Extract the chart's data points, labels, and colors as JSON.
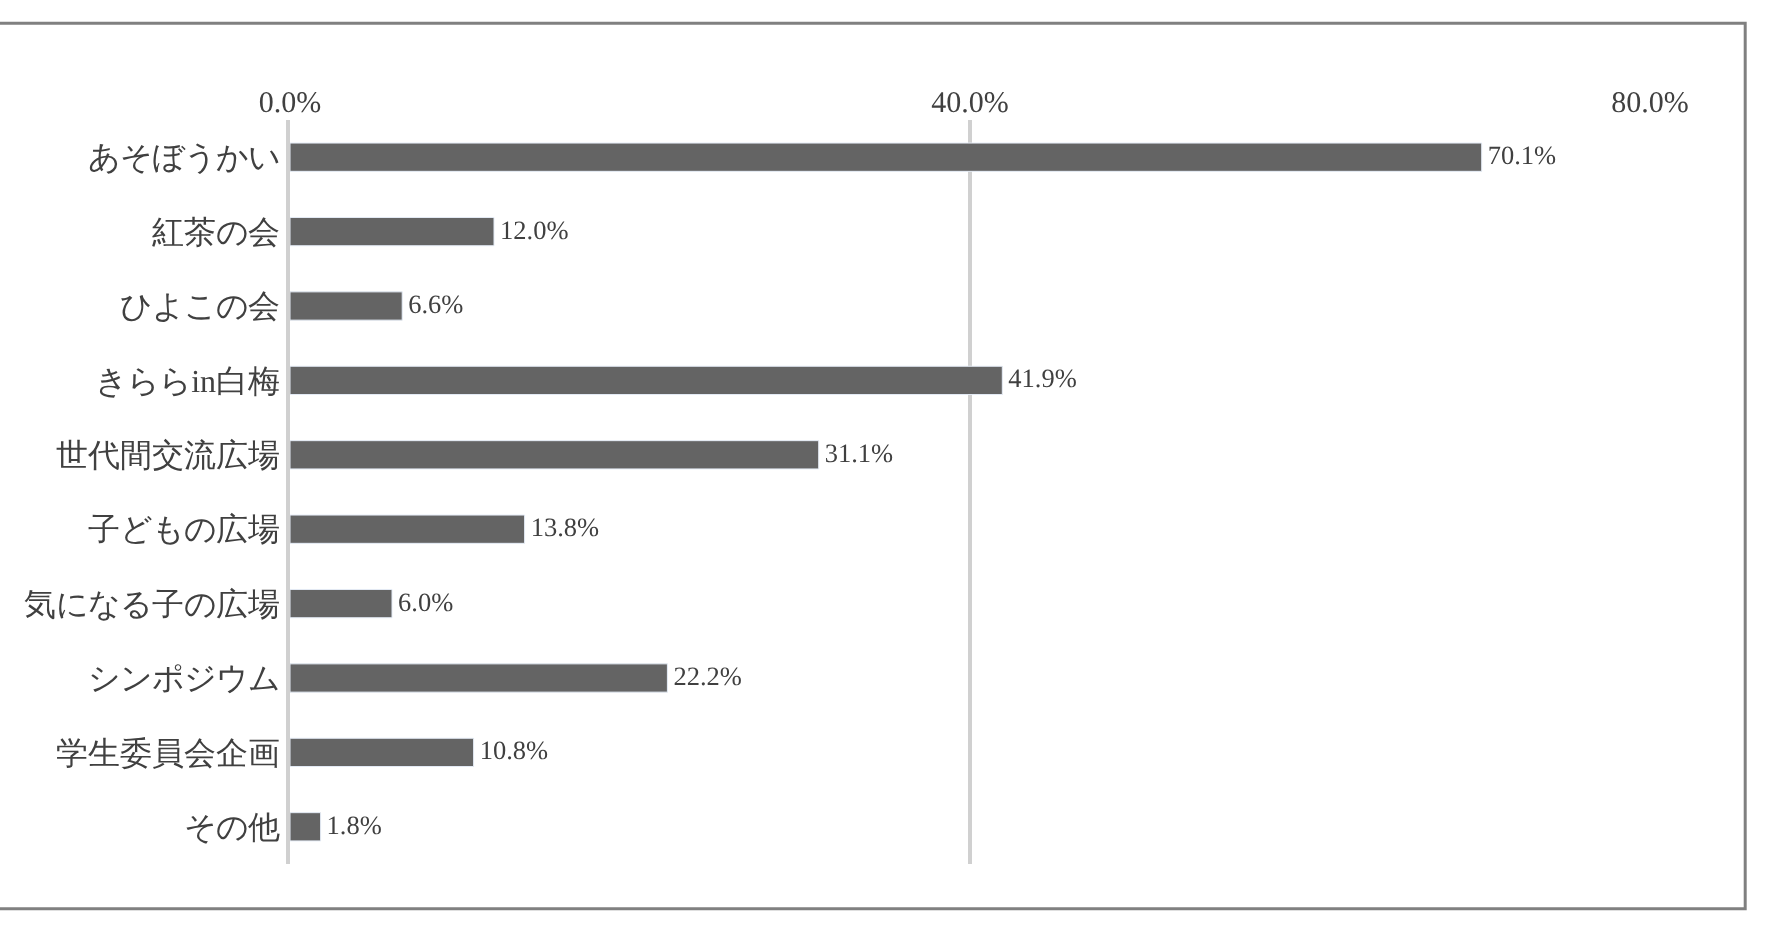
{
  "chart_data": {
    "type": "bar",
    "orientation": "horizontal",
    "categories": [
      "あそぼうかい",
      "紅茶の会",
      "ひよこの会",
      "きららin白梅",
      "世代間交流広場",
      "子どもの広場",
      "気になる子の広場",
      "シンポジウム",
      "学生委員会企画",
      "その他"
    ],
    "values": [
      70.1,
      12.0,
      6.6,
      41.9,
      31.1,
      13.8,
      6.0,
      22.2,
      10.8,
      1.8
    ],
    "value_labels": [
      "70.1%",
      "12.0%",
      "6.6%",
      "41.9%",
      "31.1%",
      "13.8%",
      "6.0%",
      "22.2%",
      "10.8%",
      "1.8%"
    ],
    "color": "#646464",
    "xlim": [
      0,
      80
    ],
    "xticks": [
      {
        "value": 0,
        "label": "0.0%"
      },
      {
        "value": 40,
        "label": "40.0%"
      },
      {
        "value": 80,
        "label": "80.0%"
      }
    ],
    "grid": "x",
    "legend": false
  }
}
